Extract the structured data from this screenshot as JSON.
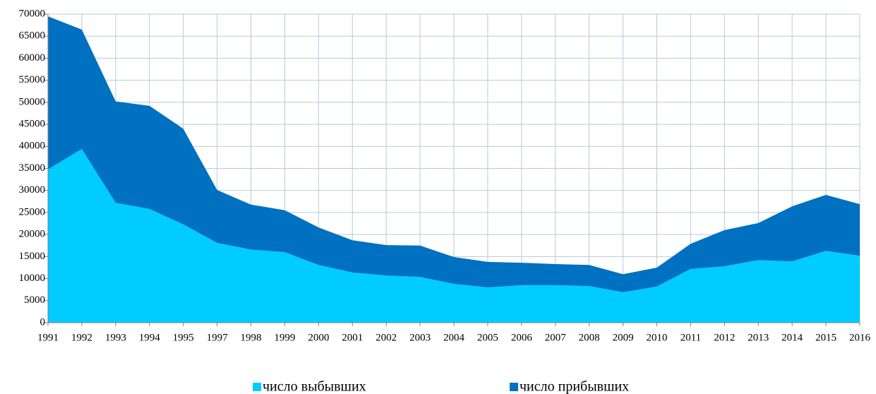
{
  "chart_data": {
    "type": "stacked_area",
    "categories": [
      "1991",
      "1992",
      "1993",
      "1994",
      "1995",
      "1997",
      "1998",
      "1999",
      "2000",
      "2001",
      "2002",
      "2003",
      "2004",
      "2005",
      "2006",
      "2007",
      "2008",
      "2009",
      "2010",
      "2011",
      "2012",
      "2013",
      "2014",
      "2015",
      "2016"
    ],
    "series": [
      {
        "name": "число выбывших",
        "color": "#00ccff",
        "values": [
          34800,
          39400,
          27200,
          25800,
          22300,
          18100,
          16600,
          16000,
          13100,
          11400,
          10700,
          10400,
          8800,
          8000,
          8500,
          8500,
          8300,
          6900,
          8200,
          12200,
          12800,
          14200,
          13900,
          16300,
          15200
        ]
      },
      {
        "name": "число прибывших",
        "color": "#0070c0",
        "values": [
          34700,
          27100,
          23000,
          23400,
          21700,
          12000,
          10200,
          9500,
          8500,
          7300,
          6900,
          7100,
          6100,
          5800,
          5100,
          4800,
          4800,
          4100,
          4300,
          5700,
          8200,
          8400,
          12500,
          12700,
          11700
        ]
      }
    ],
    "ylim": [
      0,
      70000
    ],
    "yticks": [
      0,
      5000,
      10000,
      15000,
      20000,
      25000,
      30000,
      35000,
      40000,
      45000,
      50000,
      55000,
      60000,
      65000,
      70000
    ],
    "grid": true,
    "legend": "bottom"
  }
}
